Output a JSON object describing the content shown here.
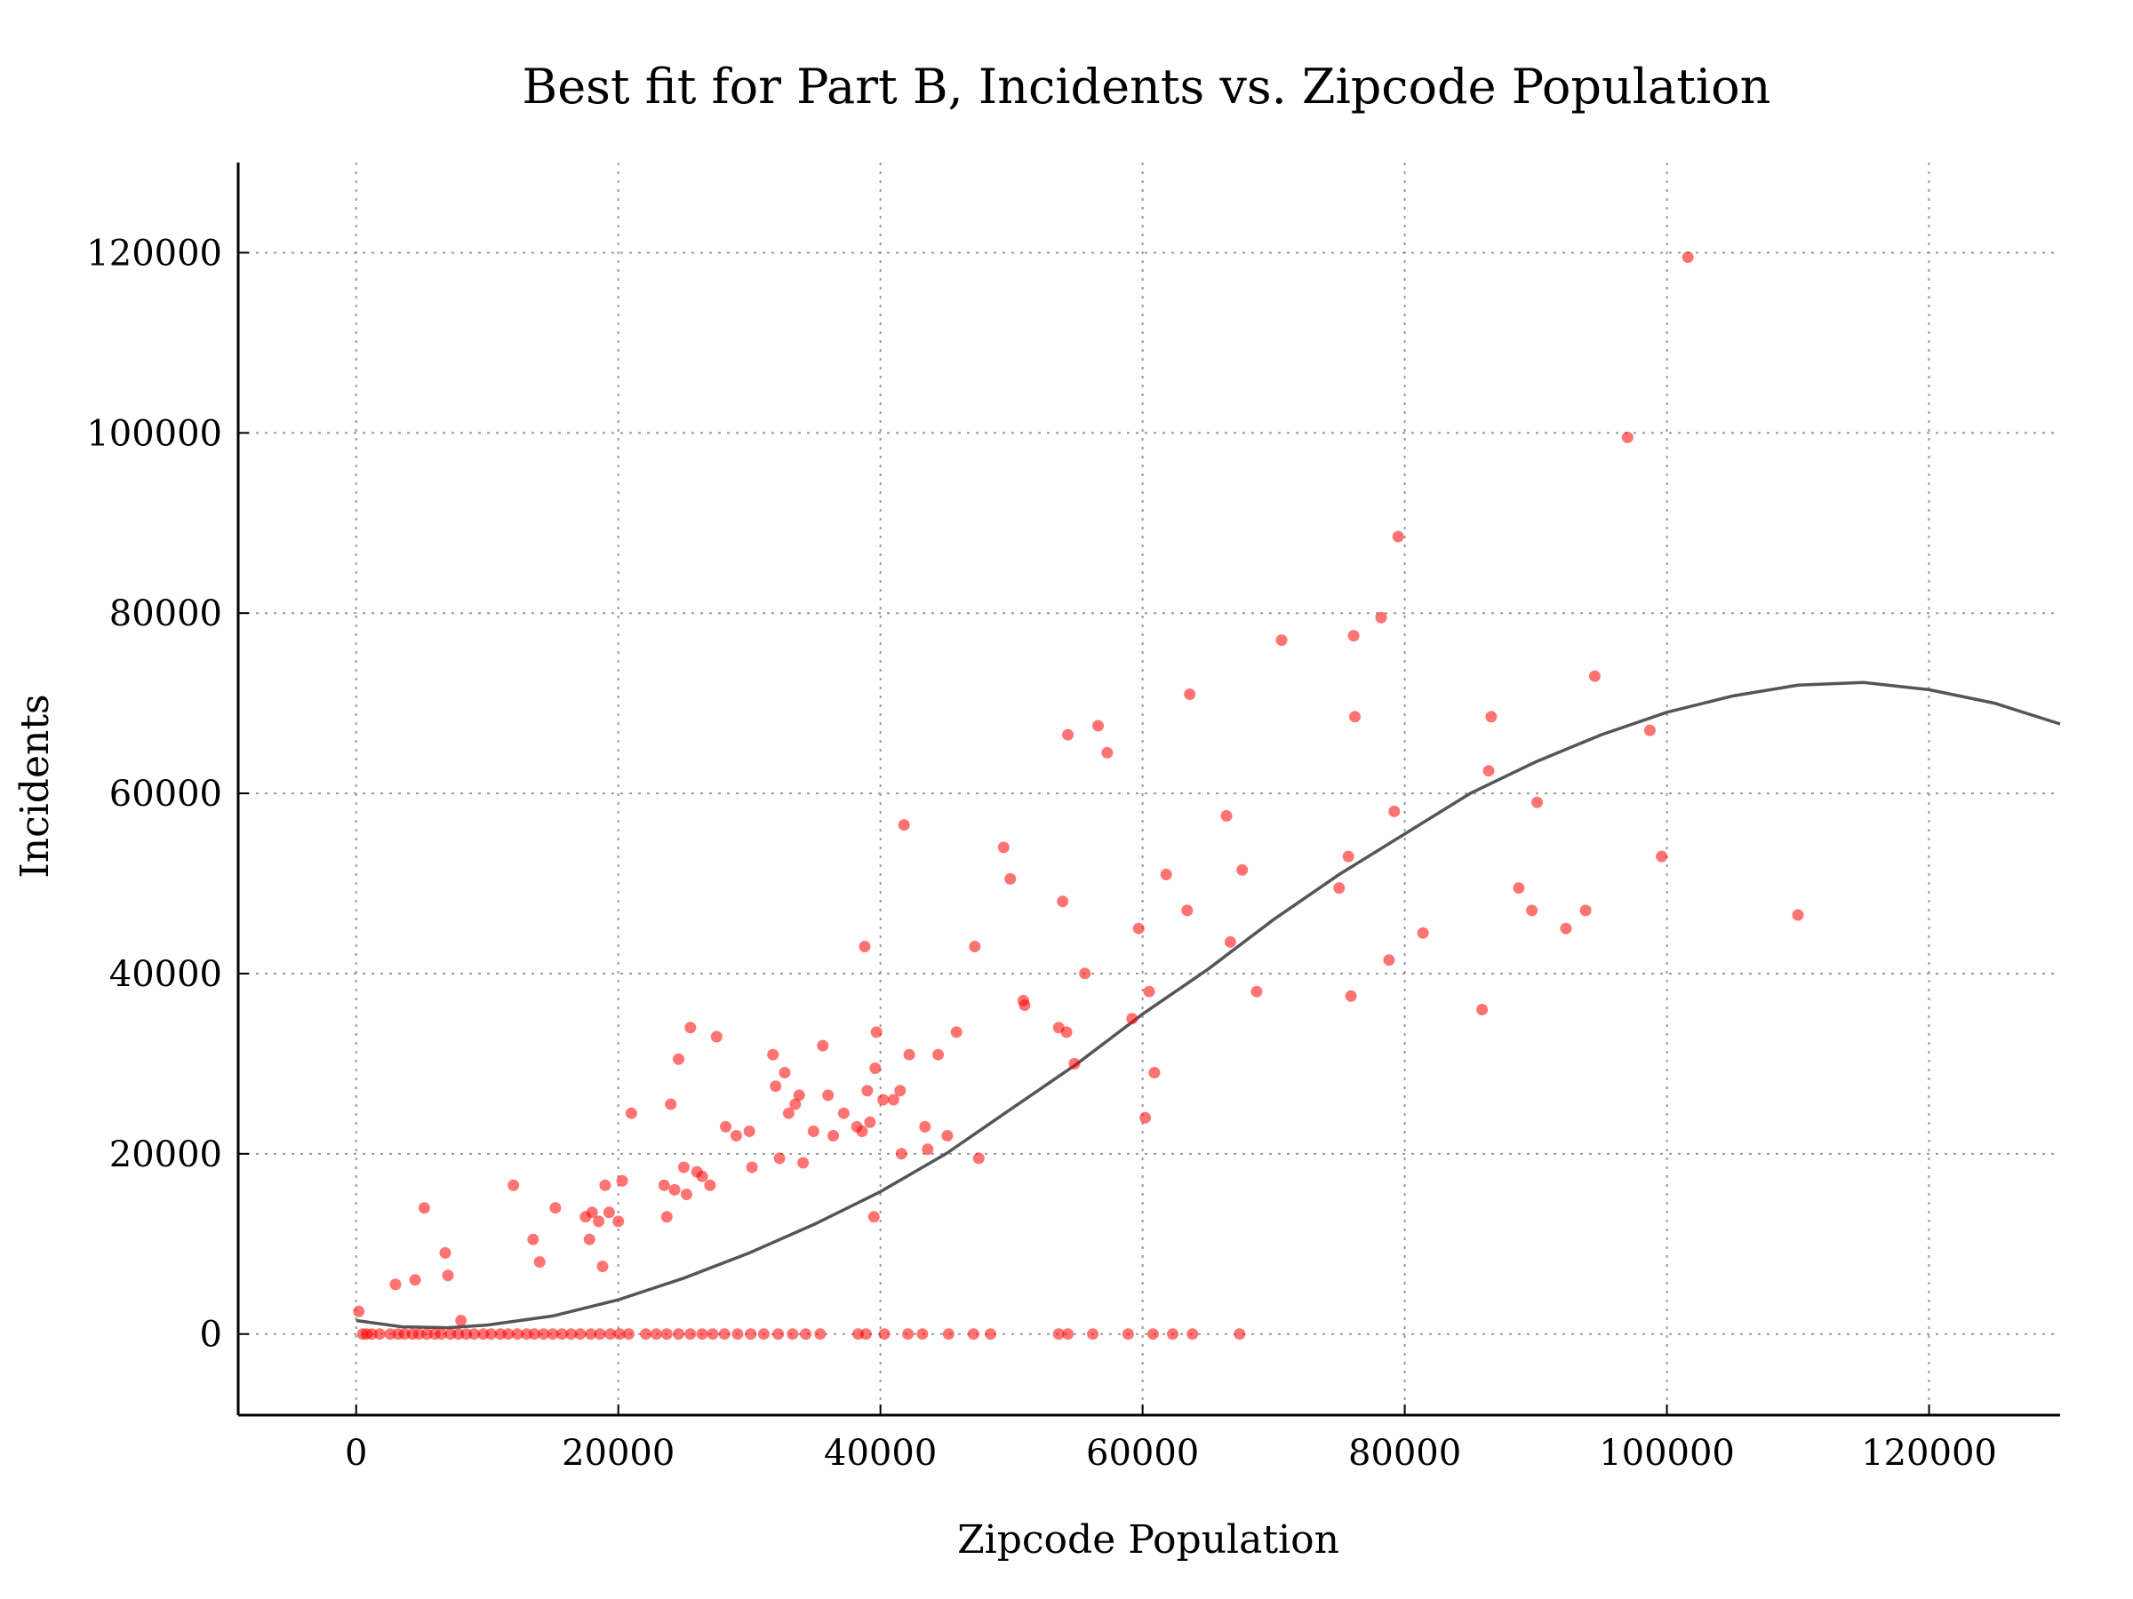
{
  "chart_data": {
    "type": "scatter",
    "title": "Best fit for Part B, Incidents vs. Zipcode Population",
    "xlabel": "Zipcode Population",
    "ylabel": "Incidents",
    "xlim": [
      -9000,
      130000
    ],
    "ylim": [
      -9000,
      130000
    ],
    "x_ticks": [
      0,
      20000,
      40000,
      60000,
      80000,
      100000,
      120000
    ],
    "y_ticks": [
      0,
      20000,
      40000,
      60000,
      80000,
      100000,
      120000
    ],
    "grid": true,
    "colors": {
      "points": "#ff0000",
      "fit": "#555555"
    },
    "series": [
      {
        "kind": "points",
        "x": [
          200,
          3000,
          4500,
          5200,
          6800,
          7000,
          8000,
          12000,
          13500,
          14000,
          15200,
          17500,
          17800,
          18000,
          18500,
          18800,
          19000,
          19300,
          20000,
          20300,
          21000,
          23500,
          23700,
          24000,
          24300,
          24600,
          25000,
          25200,
          25500,
          26000,
          26400,
          27000,
          27500,
          28200,
          29000,
          30000,
          30200,
          31800,
          32000,
          32300,
          32700,
          33000,
          33500,
          33800,
          34100,
          34900,
          35600,
          36000,
          36400,
          37200,
          38200,
          38600,
          38800,
          39000,
          39200,
          39500,
          39600,
          39700,
          40200,
          41000,
          41500,
          41600,
          41800,
          42200,
          43400,
          43600,
          44400,
          45100,
          45800,
          47200,
          47500,
          49400,
          49900,
          50900,
          51000,
          53600,
          53900,
          54200,
          54300,
          54800,
          55600,
          56600,
          57300,
          59200,
          59700,
          60200,
          60500,
          60900,
          61800,
          63400,
          63600,
          66400,
          66700,
          67600,
          68700,
          70600,
          75000,
          75700,
          75900,
          76100,
          76200,
          78200,
          78800,
          79200,
          79500,
          81400,
          85900,
          86400,
          86600,
          88700,
          89700,
          90100,
          92300,
          93800,
          94500,
          97000,
          98700,
          99600,
          101600,
          110000
        ],
        "y": [
          2500,
          5500,
          6000,
          14000,
          9000,
          6500,
          1500,
          16500,
          10500,
          8000,
          14000,
          13000,
          10500,
          13500,
          12500,
          7500,
          16500,
          13500,
          12500,
          17000,
          24500,
          16500,
          13000,
          25500,
          16000,
          30500,
          18500,
          15500,
          34000,
          18000,
          17500,
          16500,
          33000,
          23000,
          22000,
          22500,
          18500,
          31000,
          27500,
          19500,
          29000,
          24500,
          25500,
          26500,
          19000,
          22500,
          32000,
          26500,
          22000,
          24500,
          23000,
          22500,
          43000,
          27000,
          23500,
          13000,
          29500,
          33500,
          26000,
          26000,
          27000,
          20000,
          56500,
          31000,
          23000,
          20500,
          31000,
          22000,
          33500,
          43000,
          19500,
          54000,
          50500,
          37000,
          36500,
          34000,
          48000,
          33500,
          66500,
          30000,
          40000,
          67500,
          64500,
          35000,
          45000,
          24000,
          38000,
          29000,
          51000,
          47000,
          71000,
          57500,
          43500,
          51500,
          38000,
          77000,
          49500,
          53000,
          37500,
          77500,
          68500,
          79500,
          41500,
          58000,
          88500,
          44500,
          36000,
          62500,
          68500,
          49500,
          47000,
          59000,
          45000,
          47000,
          73000,
          99500,
          67000,
          53000,
          119500,
          46500
        ]
      },
      {
        "kind": "points",
        "x": [
          500,
          800,
          1200,
          1800,
          2600,
          3200,
          3700,
          4300,
          4800,
          5400,
          6000,
          6500,
          7200,
          7800,
          8400,
          9000,
          9700,
          10300,
          11000,
          11600,
          12300,
          13000,
          13600,
          14300,
          15000,
          15700,
          16400,
          17100,
          17900,
          18600,
          19400,
          20100,
          20800,
          22100,
          22900,
          23700,
          24600,
          25500,
          26400,
          27200,
          28100,
          29100,
          30100,
          31100,
          32200,
          33300,
          34300,
          35400,
          38300,
          38900,
          40300,
          42100,
          43200,
          45200,
          47100,
          48400,
          53600,
          54300,
          56200,
          58900,
          60800,
          62300,
          63800,
          67400
        ],
        "y": [
          0,
          0,
          0,
          0,
          0,
          0,
          0,
          0,
          0,
          0,
          0,
          0,
          0,
          0,
          0,
          0,
          0,
          0,
          0,
          0,
          0,
          0,
          0,
          0,
          0,
          0,
          0,
          0,
          0,
          0,
          0,
          0,
          0,
          0,
          0,
          0,
          0,
          0,
          0,
          0,
          0,
          0,
          0,
          0,
          0,
          0,
          0,
          0,
          0,
          0,
          0,
          0,
          0,
          0,
          0,
          0,
          0,
          0,
          0,
          0,
          0,
          0,
          0,
          0
        ]
      },
      {
        "kind": "fit",
        "x": [
          0,
          3500,
          7000,
          10000,
          15000,
          20000,
          25000,
          30000,
          35000,
          40000,
          45000,
          50000,
          55000,
          60000,
          65000,
          70000,
          75000,
          80000,
          85000,
          90000,
          95000,
          100000,
          105000,
          110000,
          115000,
          120000,
          125000,
          130000
        ],
        "y": [
          1500,
          800,
          700,
          1000,
          2000,
          3800,
          6200,
          9000,
          12200,
          15800,
          20000,
          25000,
          30000,
          35500,
          40500,
          46000,
          51000,
          55500,
          60000,
          63500,
          66500,
          69000,
          70800,
          72000,
          72300,
          71500,
          70000,
          67700
        ]
      }
    ]
  }
}
